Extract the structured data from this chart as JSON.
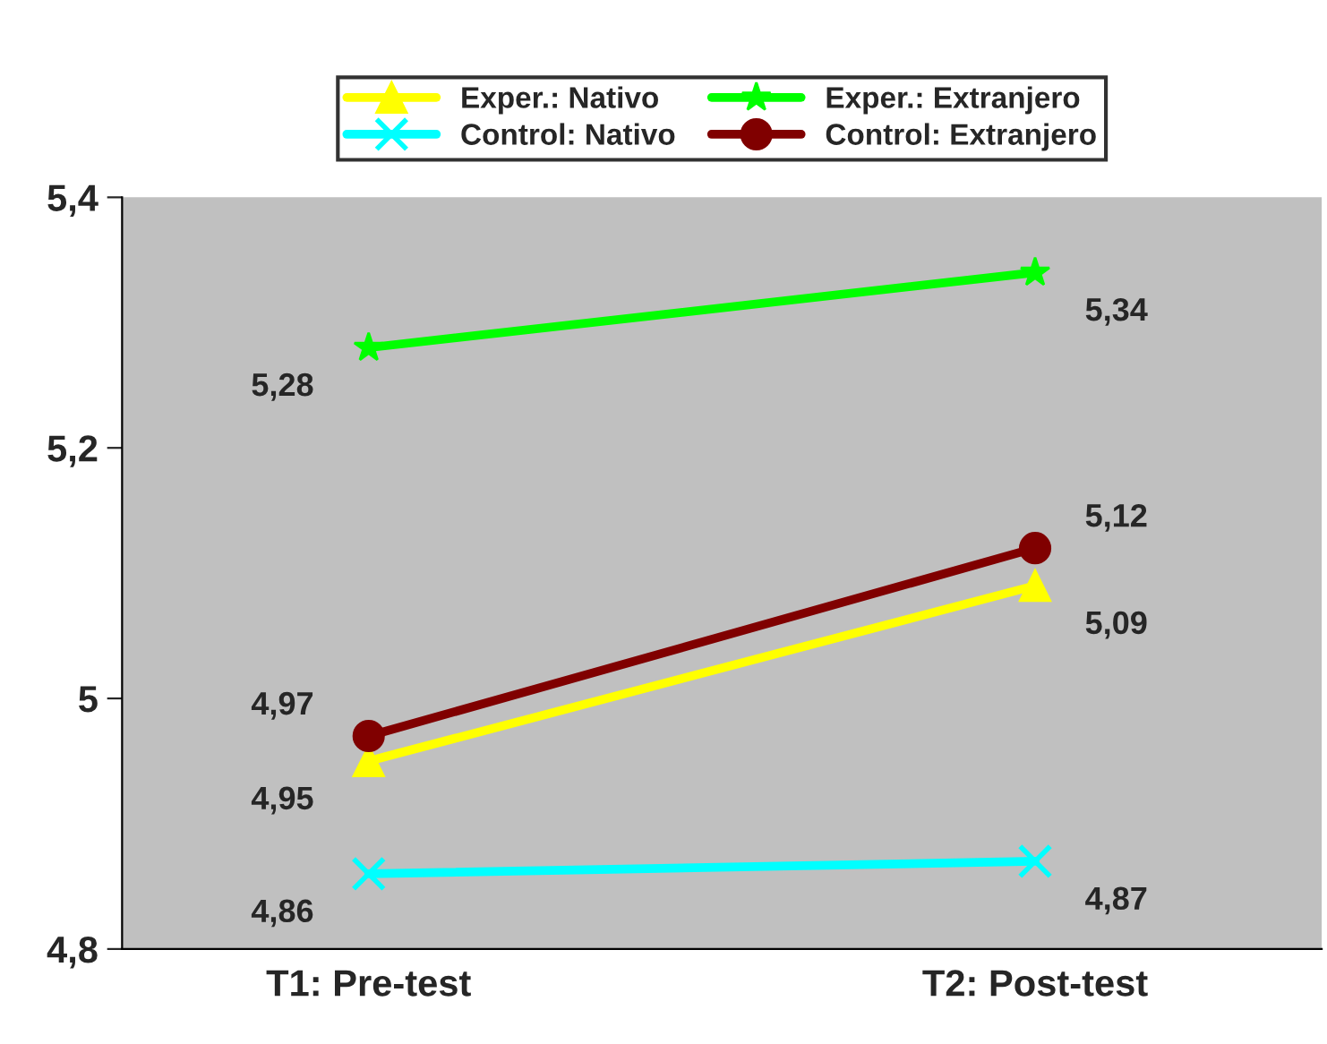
{
  "chart_data": {
    "type": "line",
    "categories": [
      "T1: Pre-test",
      "T2: Post-test"
    ],
    "series": [
      {
        "name": "Exper.: Nativo",
        "color": "#ffff00",
        "marker": "triangle",
        "values": [
          4.95,
          5.09
        ],
        "value_labels": [
          "4,95",
          "5,09"
        ]
      },
      {
        "name": "Control: Nativo",
        "color": "#00ffff",
        "marker": "cross",
        "values": [
          4.86,
          4.87
        ],
        "value_labels": [
          "4,86",
          "4,87"
        ]
      },
      {
        "name": "Exper.: Extranjero",
        "color": "#00ff00",
        "marker": "star",
        "values": [
          5.28,
          5.34
        ],
        "value_labels": [
          "5,28",
          "5,34"
        ]
      },
      {
        "name": "Control: Extranjero",
        "color": "#800000",
        "marker": "circle",
        "values": [
          4.97,
          5.12
        ],
        "value_labels": [
          "4,97",
          "5,12"
        ]
      }
    ],
    "ylim": [
      4.8,
      5.4
    ],
    "yticks": [
      {
        "value": 4.8,
        "label": "4,8"
      },
      5,
      {
        "value": 5.2,
        "label": "5,2"
      },
      {
        "value": 5.4,
        "label": "5,4"
      }
    ],
    "grid": false,
    "legend": "top",
    "line_style": "solid"
  }
}
